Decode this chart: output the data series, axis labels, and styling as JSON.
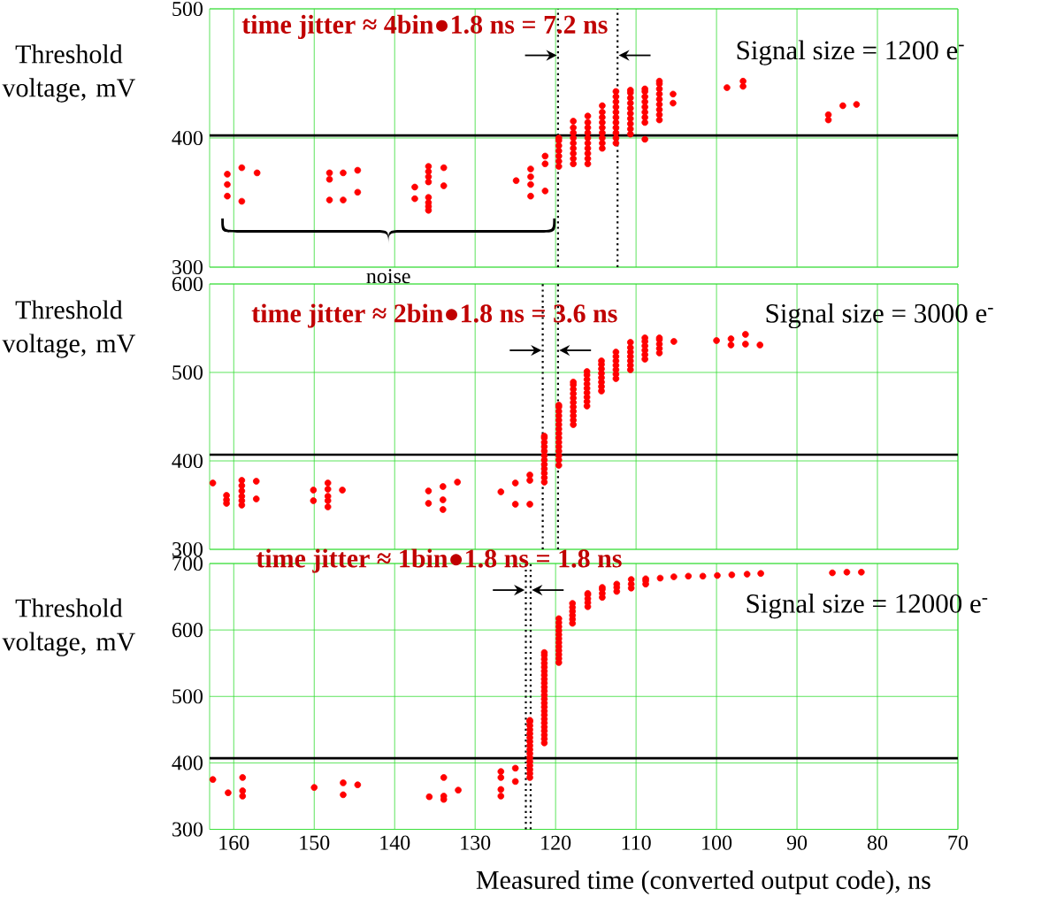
{
  "chart_data": [
    {
      "type": "scatter",
      "ylabel": "Threshold voltage, mV",
      "xlim": [
        163,
        70
      ],
      "xticks": [
        160,
        150,
        140,
        130,
        120,
        110,
        100,
        90,
        80,
        70
      ],
      "ylim": [
        300,
        500
      ],
      "yticks": [
        300,
        400,
        500
      ],
      "grid": true,
      "marker": "circle",
      "tick_labels": "y",
      "annotations": [
        "time jitter ≈ 4bin●1.8 ns = 7.2 ns",
        "Signal size = 1200 e$^{-}$",
        "noise"
      ],
      "ref_lines": [
        {
          "axis": "y",
          "value": 402,
          "color": "#000000",
          "line_style": "solid"
        },
        {
          "axis": "x",
          "value": 119.7,
          "color": "#000000",
          "line_style": "dotted"
        },
        {
          "axis": "x",
          "value": 112.3,
          "color": "#000000",
          "line_style": "dotted"
        }
      ],
      "series": [
        {
          "color": "#ff0000",
          "x": [
            160.8,
            160.8,
            160.8,
            159.0,
            159.0,
            157.1,
            148.1,
            148.1,
            148.1,
            146.4,
            146.4,
            144.6,
            144.6,
            135.8,
            135.8,
            135.8,
            135.8,
            135.8,
            135.8,
            135.8,
            135.8,
            137.5,
            137.5,
            133.9,
            133.9,
            124.9,
            123.1,
            123.1,
            123.1,
            123.1,
            121.3,
            121.3,
            121.3,
            119.6,
            119.6,
            119.6,
            119.6,
            119.6,
            119.6,
            119.6,
            117.8,
            117.8,
            117.8,
            117.8,
            117.8,
            117.8,
            117.8,
            117.8,
            117.8,
            116.0,
            116.0,
            116.0,
            116.0,
            116.0,
            116.0,
            116.0,
            116.0,
            116.0,
            116.0,
            114.2,
            114.2,
            114.2,
            114.2,
            114.2,
            114.2,
            114.2,
            114.2,
            114.2,
            112.5,
            112.5,
            112.5,
            112.5,
            112.5,
            112.5,
            112.5,
            112.5,
            112.5,
            112.5,
            112.5,
            110.7,
            110.7,
            110.7,
            110.7,
            110.7,
            110.7,
            110.7,
            110.7,
            110.7,
            110.7,
            108.9,
            108.9,
            108.9,
            108.9,
            108.9,
            108.9,
            108.9,
            108.9,
            108.9,
            107.1,
            107.1,
            107.1,
            107.1,
            107.1,
            107.1,
            107.1,
            107.1,
            107.1,
            105.4,
            105.4,
            98.7,
            96.7,
            96.7,
            86.1,
            86.1,
            84.3,
            82.6
          ],
          "values": [
            372,
            364,
            355,
            377,
            351,
            373,
            373,
            368,
            352,
            373,
            352,
            375,
            358,
            378,
            374,
            370,
            366,
            354,
            350,
            347,
            344,
            362,
            353,
            377,
            363,
            367,
            376,
            370,
            364,
            355,
            386,
            380,
            359,
            378,
            382,
            386,
            390,
            394,
            398,
            400,
            380,
            384,
            388,
            392,
            396,
            400,
            404,
            408,
            413,
            380,
            384,
            388,
            392,
            396,
            400,
            404,
            408,
            412,
            417,
            392,
            396,
            400,
            404,
            408,
            412,
            416,
            420,
            425,
            396,
            400,
            404,
            408,
            412,
            416,
            420,
            424,
            428,
            432,
            436,
            403,
            407,
            411,
            415,
            419,
            423,
            427,
            431,
            435,
            437,
            399,
            412,
            416,
            420,
            424,
            428,
            432,
            436,
            438,
            414,
            418,
            422,
            426,
            430,
            434,
            438,
            442,
            444,
            427,
            434,
            439,
            440,
            444,
            414,
            418,
            425,
            426
          ]
        }
      ]
    },
    {
      "type": "scatter",
      "ylabel": "Threshold voltage, mV",
      "xlim": [
        163,
        70
      ],
      "xticks": [
        160,
        150,
        140,
        130,
        120,
        110,
        100,
        90,
        80,
        70
      ],
      "ylim": [
        300,
        600
      ],
      "yticks": [
        300,
        400,
        500,
        600
      ],
      "grid": true,
      "marker": "circle",
      "tick_labels": "y",
      "annotations": [
        "time jitter ≈ 2bin●1.8 ns = 3.6 ns",
        "Signal size = 3000 e$^{-}$"
      ],
      "ref_lines": [
        {
          "axis": "y",
          "value": 407,
          "color": "#000000",
          "line_style": "solid"
        },
        {
          "axis": "x",
          "value": 121.6,
          "color": "#000000",
          "line_style": "dotted"
        },
        {
          "axis": "x",
          "value": 119.7,
          "color": "#000000",
          "line_style": "dotted"
        }
      ],
      "series": [
        {
          "color": "#ff0000",
          "x": [
            162.6,
            160.9,
            160.9,
            160.9,
            159.0,
            159.0,
            159.0,
            159.0,
            159.0,
            159.0,
            157.2,
            157.2,
            150.1,
            150.1,
            148.3,
            148.3,
            148.3,
            148.3,
            148.3,
            146.5,
            135.8,
            135.8,
            134.0,
            134.0,
            134.0,
            132.2,
            126.8,
            125.0,
            125.0,
            123.2,
            123.2,
            123.2,
            121.4,
            121.4,
            121.4,
            121.4,
            121.4,
            121.4,
            121.4,
            121.4,
            121.4,
            121.4,
            121.4,
            121.4,
            119.6,
            119.6,
            119.6,
            119.6,
            119.6,
            119.6,
            119.6,
            119.6,
            119.6,
            119.6,
            119.6,
            119.6,
            119.6,
            119.6,
            119.6,
            117.8,
            117.8,
            117.8,
            117.8,
            117.8,
            117.8,
            117.8,
            117.8,
            117.8,
            117.8,
            117.8,
            116.1,
            116.1,
            116.1,
            116.1,
            116.1,
            116.1,
            116.1,
            116.1,
            116.1,
            114.3,
            114.3,
            114.3,
            114.3,
            114.3,
            114.3,
            114.3,
            114.3,
            112.5,
            112.5,
            112.5,
            112.5,
            112.5,
            112.5,
            112.5,
            110.7,
            110.7,
            110.7,
            110.7,
            110.7,
            110.7,
            110.7,
            108.9,
            108.9,
            108.9,
            108.9,
            108.9,
            108.9,
            107.1,
            107.1,
            107.1,
            107.1,
            107.1,
            105.3,
            100.0,
            98.2,
            98.2,
            96.4,
            96.4,
            94.6
          ],
          "values": [
            375,
            361,
            356,
            352,
            378,
            372,
            366,
            360,
            355,
            350,
            377,
            357,
            367,
            355,
            375,
            368,
            360,
            355,
            348,
            367,
            366,
            352,
            371,
            356,
            345,
            376,
            365,
            375,
            351,
            384,
            378,
            351,
            376,
            381,
            386,
            391,
            396,
            401,
            406,
            411,
            416,
            421,
            426,
            428,
            395,
            401,
            406,
            411,
            416,
            421,
            426,
            431,
            436,
            441,
            446,
            451,
            456,
            461,
            463,
            441,
            446,
            451,
            456,
            461,
            466,
            471,
            476,
            481,
            486,
            489,
            462,
            467,
            472,
            477,
            482,
            487,
            492,
            497,
            501,
            479,
            484,
            489,
            494,
            499,
            504,
            509,
            513,
            493,
            498,
            503,
            508,
            513,
            518,
            523,
            503,
            508,
            513,
            518,
            523,
            528,
            534,
            515,
            520,
            525,
            530,
            535,
            539,
            522,
            527,
            532,
            537,
            539,
            535,
            536,
            538,
            531,
            543,
            532,
            531
          ]
        }
      ]
    },
    {
      "type": "scatter",
      "xlabel": "Measured time (converted  output code),  ns",
      "ylabel": "Threshold voltage, mV",
      "xlim": [
        163,
        70
      ],
      "xticks": [
        160,
        150,
        140,
        130,
        120,
        110,
        100,
        90,
        80,
        70
      ],
      "ylim": [
        300,
        700
      ],
      "yticks": [
        300,
        400,
        500,
        600,
        700
      ],
      "grid": true,
      "marker": "circle",
      "annotations": [
        "time jitter ≈ 1bin●1.8 ns = 1.8 ns",
        "Signal size = 12000 e$^{-}$"
      ],
      "ref_lines": [
        {
          "axis": "y",
          "value": 407,
          "color": "#000000",
          "line_style": "solid"
        },
        {
          "axis": "x",
          "value": 123.7,
          "color": "#000000",
          "line_style": "dotted"
        },
        {
          "axis": "x",
          "value": 123.1,
          "color": "#000000",
          "line_style": "dotted"
        }
      ],
      "series": [
        {
          "color": "#ff0000",
          "x": [
            162.6,
            160.7,
            158.9,
            158.9,
            158.9,
            150.0,
            146.4,
            146.4,
            144.6,
            135.7,
            133.9,
            133.9,
            133.9,
            132.1,
            126.8,
            126.8,
            126.8,
            126.8,
            125.0,
            125.0,
            123.2,
            123.2,
            123.2,
            123.2,
            123.2,
            123.2,
            123.2,
            123.2,
            123.2,
            123.2,
            123.2,
            123.2,
            123.2,
            123.2,
            123.2,
            123.2,
            121.4,
            121.4,
            121.4,
            121.4,
            121.4,
            121.4,
            121.4,
            121.4,
            121.4,
            121.4,
            121.4,
            121.4,
            121.4,
            121.4,
            121.4,
            121.4,
            121.4,
            121.4,
            121.4,
            121.4,
            121.4,
            121.4,
            121.4,
            121.4,
            119.6,
            119.6,
            119.6,
            119.6,
            119.6,
            119.6,
            119.6,
            119.6,
            119.6,
            119.6,
            119.6,
            119.6,
            117.9,
            117.9,
            117.9,
            117.9,
            117.9,
            117.9,
            116.0,
            116.0,
            116.0,
            116.0,
            116.0,
            114.2,
            114.2,
            114.2,
            114.2,
            112.4,
            112.4,
            112.4,
            110.6,
            110.6,
            110.6,
            108.8,
            108.8,
            108.8,
            107.0,
            105.3,
            103.5,
            101.7,
            99.9,
            98.1,
            96.2,
            94.5,
            85.6,
            83.8,
            82.0
          ],
          "values": [
            375,
            355,
            378,
            358,
            350,
            363,
            370,
            352,
            367,
            349,
            378,
            350,
            345,
            359,
            387,
            378,
            360,
            350,
            392,
            372,
            378,
            384,
            390,
            396,
            402,
            408,
            414,
            420,
            426,
            432,
            438,
            444,
            450,
            456,
            462,
            464,
            430,
            436,
            442,
            448,
            454,
            460,
            466,
            472,
            478,
            484,
            490,
            496,
            502,
            508,
            514,
            520,
            526,
            532,
            538,
            544,
            550,
            556,
            562,
            566,
            551,
            557,
            563,
            569,
            575,
            581,
            587,
            593,
            599,
            605,
            611,
            617,
            610,
            616,
            622,
            628,
            634,
            640,
            635,
            641,
            647,
            653,
            655,
            649,
            655,
            661,
            664,
            658,
            664,
            669,
            663,
            669,
            676,
            669,
            674,
            677,
            678,
            680,
            681,
            681,
            682,
            683,
            684,
            685,
            686,
            687,
            687
          ]
        }
      ]
    }
  ]
}
